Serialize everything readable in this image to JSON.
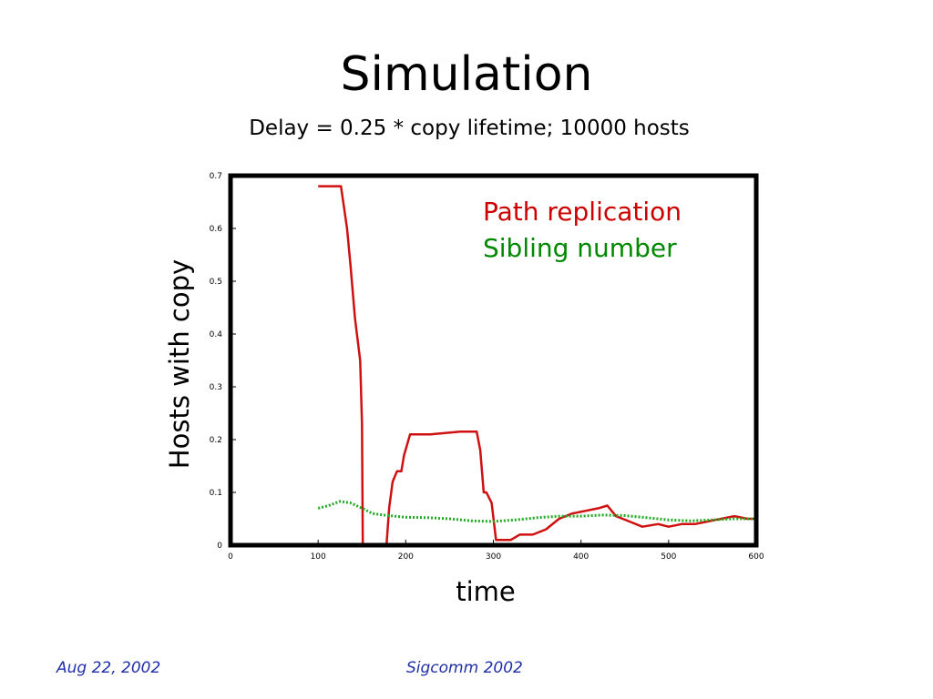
{
  "slide": {
    "title": "Simulation",
    "subtitle": "Delay = 0.25 * copy lifetime; 10000 hosts",
    "footer_left": "Aug 22, 2002",
    "footer_center": "Sigcomm 2002"
  },
  "colors": {
    "path_replication": "#d01010",
    "sibling_number": "#22aa22",
    "legend_path": "#cc0000",
    "legend_sibling": "#008800",
    "footer": "#1f2fa8"
  },
  "chart_data": {
    "type": "line",
    "xlabel": "time",
    "ylabel": "Hosts with copy",
    "xlim": [
      0,
      600
    ],
    "ylim": [
      0,
      0.7
    ],
    "xticks": [
      "0",
      "100",
      "200",
      "300",
      "400",
      "500",
      "600"
    ],
    "yticks": [
      "0",
      "0.1",
      "0.2",
      "0.3",
      "0.4",
      "0.5",
      "0.6",
      "0.7"
    ],
    "legend_position": "top-right",
    "series": [
      {
        "name": "Path replication",
        "style": "solid",
        "x": [
          100,
          126,
          133,
          137,
          142,
          148,
          150,
          151,
          155,
          172,
          178,
          181,
          185,
          190,
          195,
          198,
          205,
          228,
          262,
          281,
          285,
          289,
          292,
          298,
          303,
          312,
          320,
          330,
          345,
          360,
          375,
          390,
          405,
          420,
          430,
          440,
          455,
          470,
          488,
          500,
          515,
          530,
          545,
          560,
          575,
          590,
          600
        ],
        "y": [
          0.68,
          0.68,
          0.6,
          0.53,
          0.43,
          0.35,
          0.23,
          0.0,
          0.0,
          0.0,
          0.0,
          0.07,
          0.12,
          0.14,
          0.14,
          0.17,
          0.21,
          0.21,
          0.215,
          0.215,
          0.18,
          0.1,
          0.1,
          0.08,
          0.01,
          0.01,
          0.01,
          0.02,
          0.02,
          0.03,
          0.05,
          0.06,
          0.065,
          0.07,
          0.075,
          0.055,
          0.045,
          0.035,
          0.04,
          0.035,
          0.04,
          0.04,
          0.045,
          0.05,
          0.055,
          0.05,
          0.05
        ]
      },
      {
        "name": "Sibling number",
        "style": "dotted",
        "x": [
          100,
          112,
          125,
          137,
          150,
          162,
          175,
          187,
          200,
          225,
          250,
          275,
          300,
          325,
          350,
          375,
          400,
          425,
          450,
          475,
          500,
          525,
          550,
          575,
          600
        ],
        "y": [
          0.07,
          0.075,
          0.083,
          0.08,
          0.07,
          0.06,
          0.057,
          0.055,
          0.053,
          0.052,
          0.05,
          0.046,
          0.045,
          0.048,
          0.052,
          0.055,
          0.055,
          0.057,
          0.056,
          0.052,
          0.048,
          0.046,
          0.048,
          0.05,
          0.05
        ]
      }
    ]
  }
}
